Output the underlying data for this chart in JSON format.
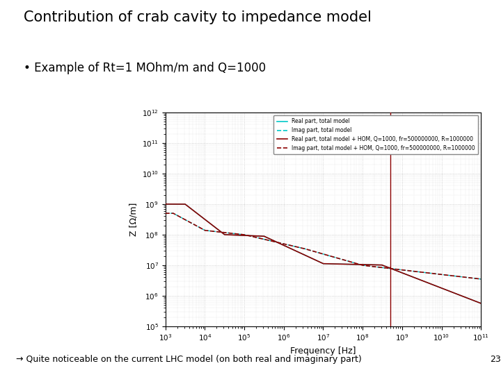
{
  "title": "Contribution of crab cavity to impedance model",
  "bullet": "Example of Rt=1 MOhm/m and Q=1000",
  "xlabel": "Frequency [Hz]",
  "ylabel": "Z [Ω/m]",
  "xlim": [
    1000.0,
    100000000000.0
  ],
  "ylim": [
    100000.0,
    1000000000000.0
  ],
  "freq_res": 500000000.0,
  "Q": 1000,
  "R": 1000000,
  "legend": [
    "Real part, total model",
    "Imag part, total model",
    "Real part, total model + HOM, Q=1000, fr=500000000, R=1000000",
    "Imag part, total model + HOM, Q=1000, fr=500000000, R=1000000"
  ],
  "colors": {
    "cyan_solid": "#00c8c8",
    "red_solid": "#8b0000"
  },
  "bottom_text": "→ Quite noticeable on the current LHC model (on both real and imaginary part)",
  "page_num": "23",
  "left_bar_color": "#4a6fa5",
  "bottom_bar_color": "#ffff00",
  "grid_color": "#c8c8c8"
}
